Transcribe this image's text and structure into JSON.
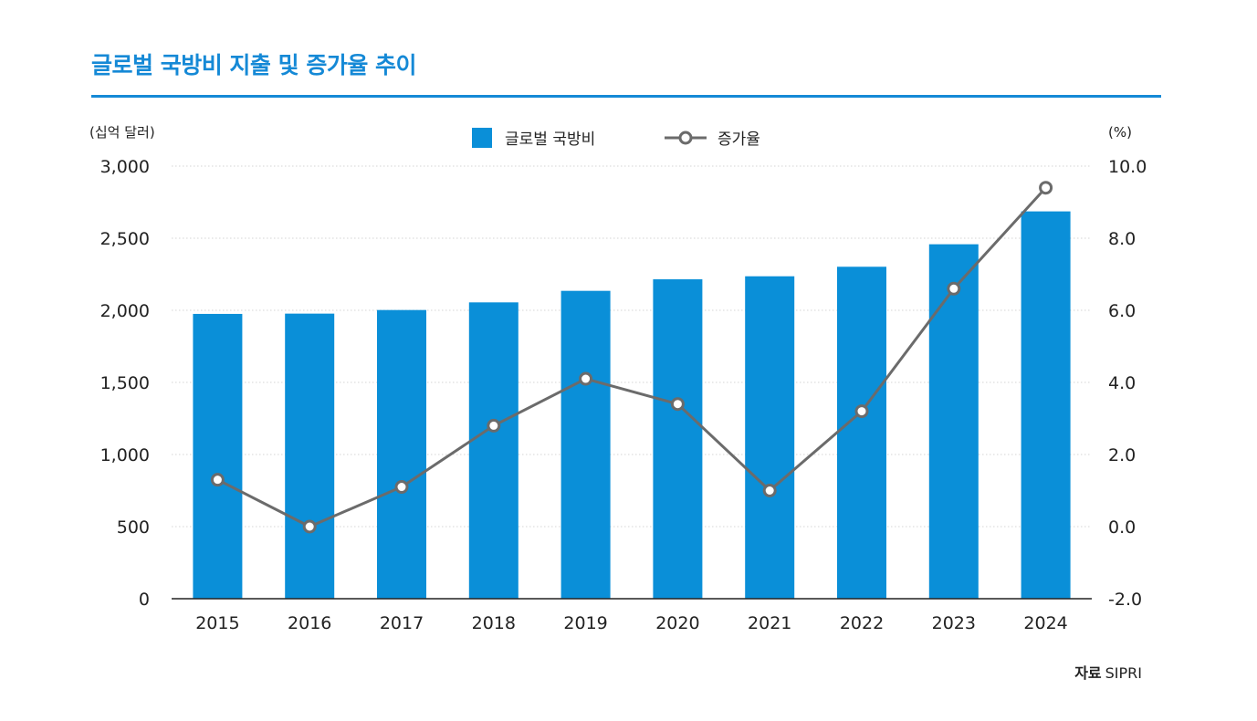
{
  "chart_data": {
    "type": "bar",
    "title": "글로벌 국방비 지출 및 증가율 추이",
    "categories": [
      "2015",
      "2016",
      "2017",
      "2018",
      "2019",
      "2020",
      "2021",
      "2022",
      "2023",
      "2024"
    ],
    "series": [
      {
        "name": "글로벌 국방비",
        "type": "bar",
        "axis": "left",
        "color": "#0a8fd8",
        "values": [
          1975,
          1977,
          2002,
          2055,
          2135,
          2215,
          2236,
          2302,
          2458,
          2686
        ]
      },
      {
        "name": "증가율",
        "type": "line",
        "axis": "right",
        "color": "#6b6b6b",
        "values": [
          1.3,
          0.0,
          1.1,
          2.8,
          4.1,
          3.4,
          1.0,
          3.2,
          6.6,
          9.4
        ]
      }
    ],
    "y_left": {
      "label": "(십억 달러)",
      "ylim": [
        0,
        3000
      ],
      "ticks": [
        "0",
        "500",
        "1,000",
        "1,500",
        "2,000",
        "2,500",
        "3,000"
      ]
    },
    "y_right": {
      "label": "(%)",
      "ylim": [
        -2,
        10
      ],
      "ticks": [
        "-2.0",
        "0.0",
        "2.0",
        "4.0",
        "6.0",
        "8.0",
        "10.0"
      ]
    },
    "grid": "horizontal-dotted",
    "legend": "top-center"
  },
  "source": {
    "label": "자료",
    "value": "SIPRI"
  }
}
